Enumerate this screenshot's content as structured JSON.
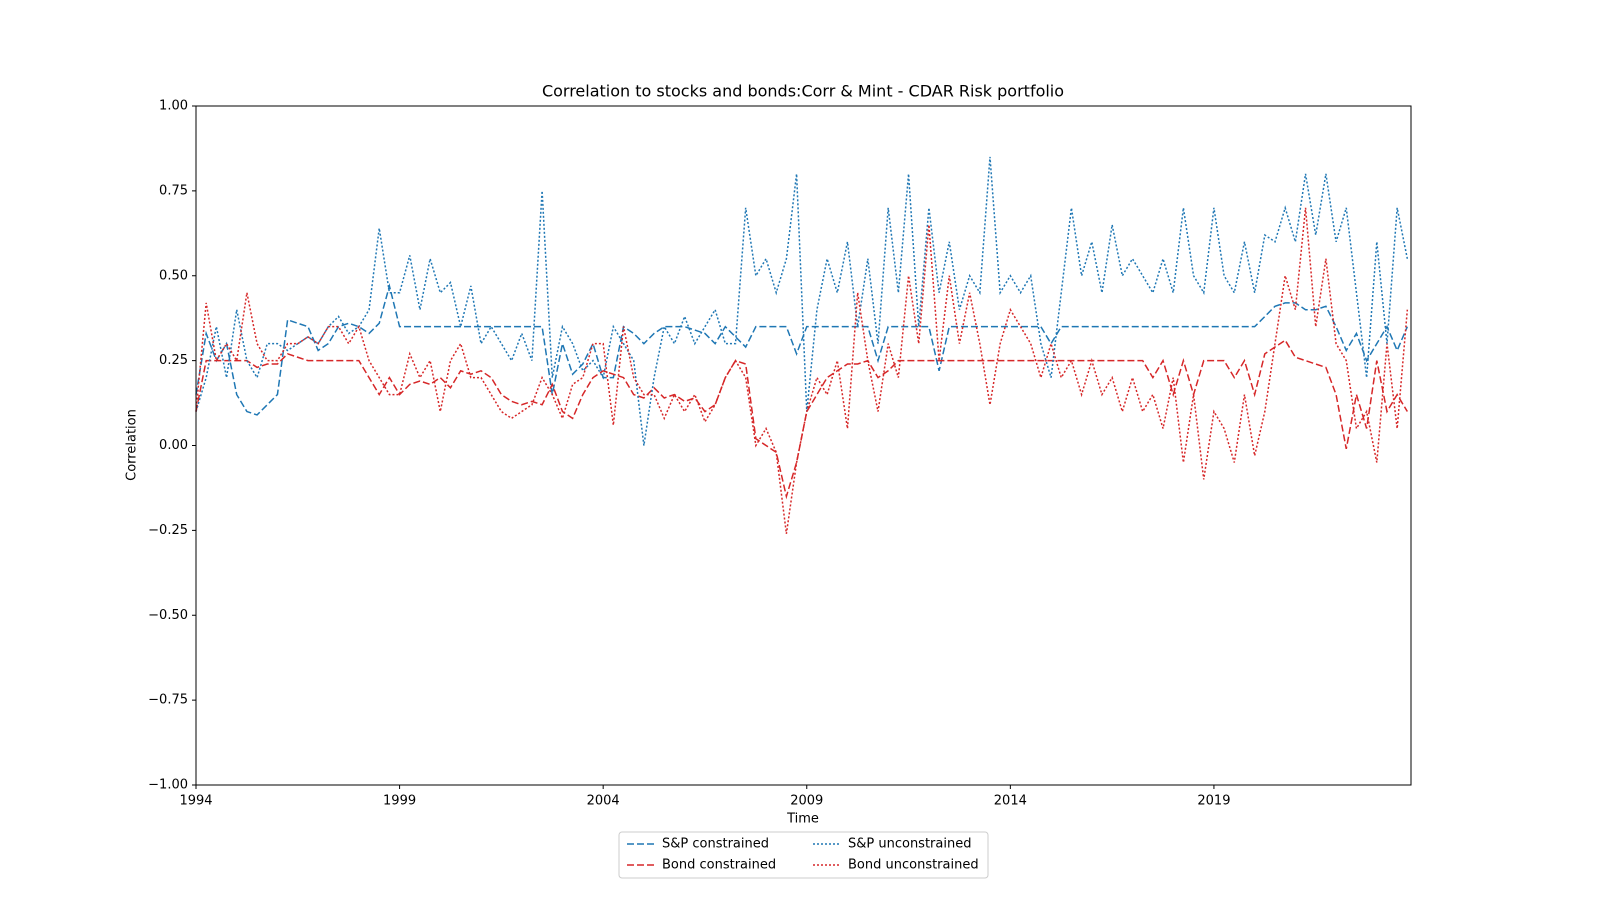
{
  "chart_data": {
    "type": "line",
    "title": "Correlation to stocks and bonds:Corr & Mint - CDAR Risk portfolio",
    "xlabel": "Time",
    "ylabel": "Correlation",
    "xlim": [
      1994,
      2023.84
    ],
    "ylim": [
      -1,
      1
    ],
    "xticks": [
      1994,
      1999,
      2004,
      2009,
      2014,
      2019
    ],
    "yticks": [
      {
        "value": -1,
        "label": "−1.00"
      },
      {
        "value": -0.75,
        "label": "−0.75"
      },
      {
        "value": -0.5,
        "label": "−0.50"
      },
      {
        "value": -0.25,
        "label": "−0.25"
      },
      {
        "value": 0,
        "label": "0.00"
      },
      {
        "value": 0.25,
        "label": "0.25"
      },
      {
        "value": 0.5,
        "label": "0.50"
      },
      {
        "value": 0.75,
        "label": "0.75"
      },
      {
        "value": 1,
        "label": "1.00"
      }
    ],
    "grid": false,
    "legend": "lower center",
    "x": [
      1994,
      1994.25,
      1994.5,
      1994.75,
      1995,
      1995.25,
      1995.5,
      1995.75,
      1996,
      1996.25,
      1996.5,
      1996.75,
      1997,
      1997.25,
      1997.5,
      1997.75,
      1998,
      1998.25,
      1998.5,
      1998.75,
      1999,
      1999.25,
      1999.5,
      1999.75,
      2000,
      2000.25,
      2000.5,
      2000.75,
      2001,
      2001.25,
      2001.5,
      2001.75,
      2002,
      2002.25,
      2002.5,
      2002.75,
      2003,
      2003.25,
      2003.5,
      2003.75,
      2004,
      2004.25,
      2004.5,
      2004.75,
      2005,
      2005.25,
      2005.5,
      2005.75,
      2006,
      2006.25,
      2006.5,
      2006.75,
      2007,
      2007.25,
      2007.5,
      2007.75,
      2008,
      2008.25,
      2008.5,
      2008.75,
      2009,
      2009.25,
      2009.5,
      2009.75,
      2010,
      2010.25,
      2010.5,
      2010.75,
      2011,
      2011.25,
      2011.5,
      2011.75,
      2012,
      2012.25,
      2012.5,
      2012.75,
      2013,
      2013.25,
      2013.5,
      2013.75,
      2014,
      2014.25,
      2014.5,
      2014.75,
      2015,
      2015.25,
      2015.5,
      2015.75,
      2016,
      2016.25,
      2016.5,
      2016.75,
      2017,
      2017.25,
      2017.5,
      2017.75,
      2018,
      2018.25,
      2018.5,
      2018.75,
      2019,
      2019.25,
      2019.5,
      2019.75,
      2020,
      2020.25,
      2020.5,
      2020.75,
      2021,
      2021.25,
      2021.5,
      2021.75,
      2022,
      2022.25,
      2022.5,
      2022.75,
      2023,
      2023.25,
      2023.5,
      2023.75
    ],
    "series": [
      {
        "name": "S&P constrained",
        "color": "#1f77b4",
        "linestyle": "dashed",
        "values": [
          0.15,
          0.33,
          0.25,
          0.3,
          0.15,
          0.1,
          0.09,
          0.12,
          0.15,
          0.37,
          0.36,
          0.35,
          0.28,
          0.3,
          0.35,
          0.36,
          0.35,
          0.33,
          0.36,
          0.47,
          0.35,
          0.35,
          0.35,
          0.35,
          0.35,
          0.35,
          0.35,
          0.35,
          0.35,
          0.35,
          0.35,
          0.35,
          0.35,
          0.35,
          0.35,
          0.15,
          0.3,
          0.21,
          0.24,
          0.3,
          0.2,
          0.2,
          0.35,
          0.33,
          0.3,
          0.33,
          0.35,
          0.35,
          0.35,
          0.34,
          0.33,
          0.3,
          0.35,
          0.32,
          0.29,
          0.35,
          0.35,
          0.35,
          0.35,
          0.27,
          0.35,
          0.35,
          0.35,
          0.35,
          0.35,
          0.35,
          0.35,
          0.25,
          0.35,
          0.35,
          0.35,
          0.35,
          0.35,
          0.22,
          0.35,
          0.35,
          0.35,
          0.35,
          0.35,
          0.35,
          0.35,
          0.35,
          0.35,
          0.35,
          0.3,
          0.35,
          0.35,
          0.35,
          0.35,
          0.35,
          0.35,
          0.35,
          0.35,
          0.35,
          0.35,
          0.35,
          0.35,
          0.35,
          0.35,
          0.35,
          0.35,
          0.35,
          0.35,
          0.35,
          0.35,
          0.38,
          0.41,
          0.42,
          0.42,
          0.4,
          0.4,
          0.41,
          0.35,
          0.28,
          0.33,
          0.25,
          0.3,
          0.35,
          0.28,
          0.35
        ]
      },
      {
        "name": "Bond constrained",
        "color": "#d62728",
        "linestyle": "dashed",
        "values": [
          0.1,
          0.25,
          0.25,
          0.25,
          0.25,
          0.25,
          0.23,
          0.24,
          0.24,
          0.27,
          0.26,
          0.25,
          0.25,
          0.25,
          0.25,
          0.25,
          0.25,
          0.2,
          0.15,
          0.2,
          0.15,
          0.18,
          0.19,
          0.18,
          0.2,
          0.17,
          0.22,
          0.21,
          0.22,
          0.2,
          0.15,
          0.13,
          0.12,
          0.13,
          0.12,
          0.18,
          0.1,
          0.08,
          0.15,
          0.2,
          0.22,
          0.21,
          0.2,
          0.15,
          0.14,
          0.17,
          0.14,
          0.15,
          0.13,
          0.14,
          0.1,
          0.12,
          0.2,
          0.25,
          0.24,
          0.02,
          0.0,
          -0.02,
          -0.15,
          -0.05,
          0.1,
          0.15,
          0.2,
          0.22,
          0.24,
          0.24,
          0.25,
          0.2,
          0.22,
          0.25,
          0.25,
          0.25,
          0.25,
          0.25,
          0.25,
          0.25,
          0.25,
          0.25,
          0.25,
          0.25,
          0.25,
          0.25,
          0.25,
          0.25,
          0.25,
          0.25,
          0.25,
          0.25,
          0.25,
          0.25,
          0.25,
          0.25,
          0.25,
          0.25,
          0.2,
          0.25,
          0.15,
          0.25,
          0.15,
          0.25,
          0.25,
          0.25,
          0.2,
          0.25,
          0.15,
          0.27,
          0.29,
          0.31,
          0.26,
          0.25,
          0.24,
          0.23,
          0.15,
          -0.01,
          0.15,
          0.05,
          0.25,
          0.1,
          0.15,
          0.1
        ]
      },
      {
        "name": "S&P unconstrained",
        "color": "#1f77b4",
        "linestyle": "dotted",
        "values": [
          0.1,
          0.2,
          0.35,
          0.2,
          0.4,
          0.25,
          0.2,
          0.3,
          0.3,
          0.28,
          0.3,
          0.32,
          0.3,
          0.35,
          0.38,
          0.33,
          0.35,
          0.4,
          0.64,
          0.45,
          0.45,
          0.56,
          0.4,
          0.55,
          0.45,
          0.48,
          0.35,
          0.47,
          0.3,
          0.35,
          0.3,
          0.25,
          0.33,
          0.25,
          0.75,
          0.2,
          0.35,
          0.3,
          0.22,
          0.25,
          0.2,
          0.35,
          0.3,
          0.25,
          0.0,
          0.2,
          0.35,
          0.3,
          0.38,
          0.3,
          0.35,
          0.4,
          0.3,
          0.3,
          0.7,
          0.5,
          0.55,
          0.45,
          0.55,
          0.8,
          0.1,
          0.4,
          0.55,
          0.45,
          0.6,
          0.35,
          0.55,
          0.3,
          0.7,
          0.45,
          0.8,
          0.35,
          0.7,
          0.45,
          0.6,
          0.4,
          0.5,
          0.45,
          0.85,
          0.45,
          0.5,
          0.45,
          0.5,
          0.3,
          0.2,
          0.45,
          0.7,
          0.5,
          0.6,
          0.45,
          0.65,
          0.5,
          0.55,
          0.5,
          0.45,
          0.55,
          0.45,
          0.7,
          0.5,
          0.45,
          0.7,
          0.5,
          0.45,
          0.6,
          0.45,
          0.62,
          0.6,
          0.7,
          0.6,
          0.8,
          0.62,
          0.8,
          0.6,
          0.7,
          0.45,
          0.2,
          0.6,
          0.3,
          0.7,
          0.55
        ]
      },
      {
        "name": "Bond unconstrained",
        "color": "#d62728",
        "linestyle": "dotted",
        "values": [
          0.1,
          0.42,
          0.25,
          0.3,
          0.25,
          0.45,
          0.3,
          0.25,
          0.25,
          0.3,
          0.3,
          0.32,
          0.3,
          0.35,
          0.35,
          0.3,
          0.35,
          0.25,
          0.2,
          0.15,
          0.15,
          0.27,
          0.2,
          0.25,
          0.1,
          0.25,
          0.3,
          0.2,
          0.2,
          0.15,
          0.1,
          0.08,
          0.1,
          0.12,
          0.2,
          0.15,
          0.08,
          0.18,
          0.2,
          0.3,
          0.3,
          0.06,
          0.35,
          0.2,
          0.15,
          0.15,
          0.08,
          0.15,
          0.1,
          0.15,
          0.07,
          0.12,
          0.2,
          0.25,
          0.2,
          0.0,
          0.05,
          -0.02,
          -0.26,
          -0.05,
          0.1,
          0.2,
          0.15,
          0.25,
          0.05,
          0.45,
          0.25,
          0.1,
          0.3,
          0.2,
          0.5,
          0.3,
          0.65,
          0.25,
          0.5,
          0.3,
          0.45,
          0.3,
          0.12,
          0.3,
          0.4,
          0.35,
          0.3,
          0.2,
          0.3,
          0.2,
          0.25,
          0.15,
          0.25,
          0.15,
          0.2,
          0.1,
          0.2,
          0.1,
          0.15,
          0.05,
          0.2,
          -0.05,
          0.15,
          -0.1,
          0.1,
          0.05,
          -0.05,
          0.15,
          -0.03,
          0.1,
          0.3,
          0.5,
          0.4,
          0.7,
          0.35,
          0.55,
          0.3,
          0.25,
          0.05,
          0.1,
          -0.05,
          0.3,
          0.05,
          0.4
        ]
      }
    ]
  }
}
